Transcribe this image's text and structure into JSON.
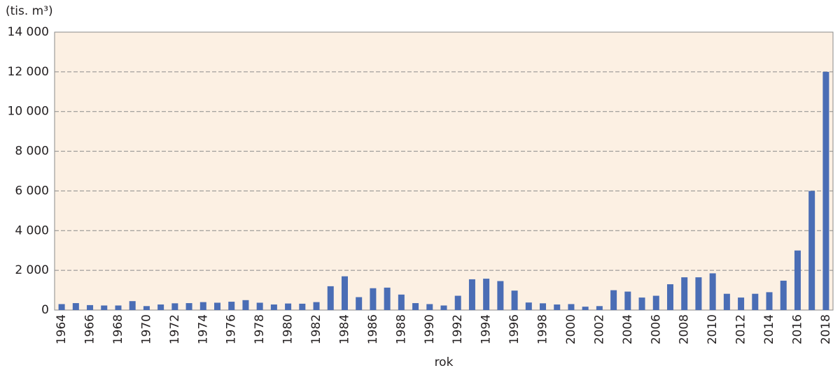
{
  "chart_data": {
    "type": "bar",
    "y_label": "(tis. m³)",
    "x_label": "rok",
    "categories": [
      "1964",
      null,
      "1966",
      null,
      "1968",
      null,
      "1970",
      null,
      "1972",
      null,
      "1974",
      null,
      "1976",
      null,
      "1978",
      null,
      "1980",
      null,
      "1982",
      null,
      "1984",
      null,
      "1986",
      null,
      "1988",
      null,
      "1990",
      null,
      "1992",
      null,
      "1994",
      null,
      "1996",
      null,
      "1998",
      null,
      "2000",
      null,
      "2002",
      null,
      "2004",
      null,
      "2006",
      null,
      "2008",
      null,
      "2010",
      null,
      "2012",
      null,
      "2014",
      null,
      "2016",
      null,
      "2018"
    ],
    "values": [
      300,
      350,
      250,
      230,
      230,
      450,
      200,
      280,
      340,
      350,
      400,
      370,
      420,
      500,
      370,
      280,
      330,
      320,
      400,
      1200,
      1700,
      650,
      1100,
      1130,
      780,
      350,
      300,
      230,
      720,
      1550,
      1580,
      1460,
      980,
      380,
      340,
      280,
      300,
      170,
      200,
      1000,
      930,
      630,
      720,
      1300,
      1650,
      1650,
      1850,
      820,
      630,
      820,
      900,
      1480,
      3000,
      6000,
      12000
    ],
    "color": "#4a6db5",
    "ylim": [
      0,
      14000
    ],
    "yticks": [
      0,
      {
        "value": 2000,
        "label": "2 000"
      },
      {
        "value": 4000,
        "label": "4 000"
      },
      {
        "value": 6000,
        "label": "6 000"
      },
      {
        "value": 8000,
        "label": "8 000"
      },
      {
        "value": 10000,
        "label": "10 000"
      },
      {
        "value": 12000,
        "label": "12 000"
      },
      {
        "value": 14000,
        "label": "14 000"
      }
    ],
    "grid": true
  }
}
